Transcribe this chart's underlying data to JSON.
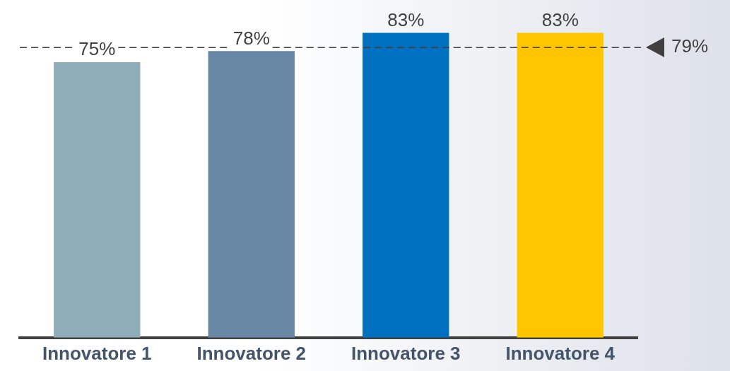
{
  "chart_data": {
    "type": "bar",
    "categories": [
      "Innovatore 1",
      "Innovatore 2",
      "Innovatore 3",
      "Innovatore 4"
    ],
    "values": [
      75,
      78,
      83,
      83
    ],
    "colors": [
      "#8fadb9",
      "#6787a5",
      "#0070c0",
      "#ffc600"
    ],
    "value_labels": [
      "75%",
      "78%",
      "83%",
      "83%"
    ],
    "tick_labels": "x",
    "ref_lines": [
      {
        "axis": "y",
        "value": 79,
        "label": "79%",
        "color": "#404040",
        "line_style": "dashed"
      }
    ]
  }
}
